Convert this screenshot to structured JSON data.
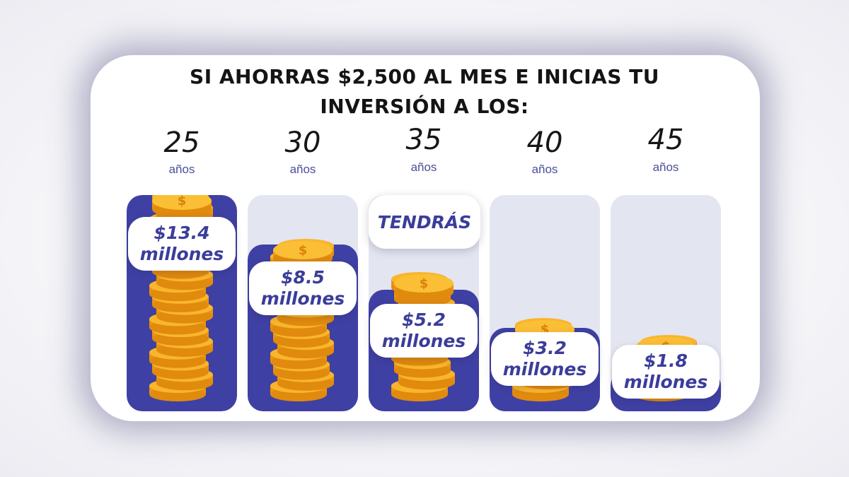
{
  "headline": {
    "line1": "SI AHORRAS $2,500 AL MES E INICIAS TU",
    "line2": "INVERSIÓN A LOS:"
  },
  "callout": "TENDRÁS",
  "colors": {
    "bar_fill": "#3f40a3",
    "column_bg": "#e3e5f1",
    "coin": "#f5a623",
    "label_text": "#3b3d9a"
  },
  "chart_data": {
    "type": "bar",
    "categories": [
      "25",
      "30",
      "35",
      "40",
      "45"
    ],
    "category_unit": "años",
    "values": [
      13.4,
      8.5,
      5.2,
      3.2,
      1.8
    ],
    "value_labels": [
      [
        "$13.4",
        "millones"
      ],
      [
        "$8.5",
        "millones"
      ],
      [
        "$5.2",
        "millones"
      ],
      [
        "$3.2",
        "millones"
      ],
      [
        "$1.8",
        "millones"
      ]
    ],
    "grid": false,
    "legend": "none"
  }
}
